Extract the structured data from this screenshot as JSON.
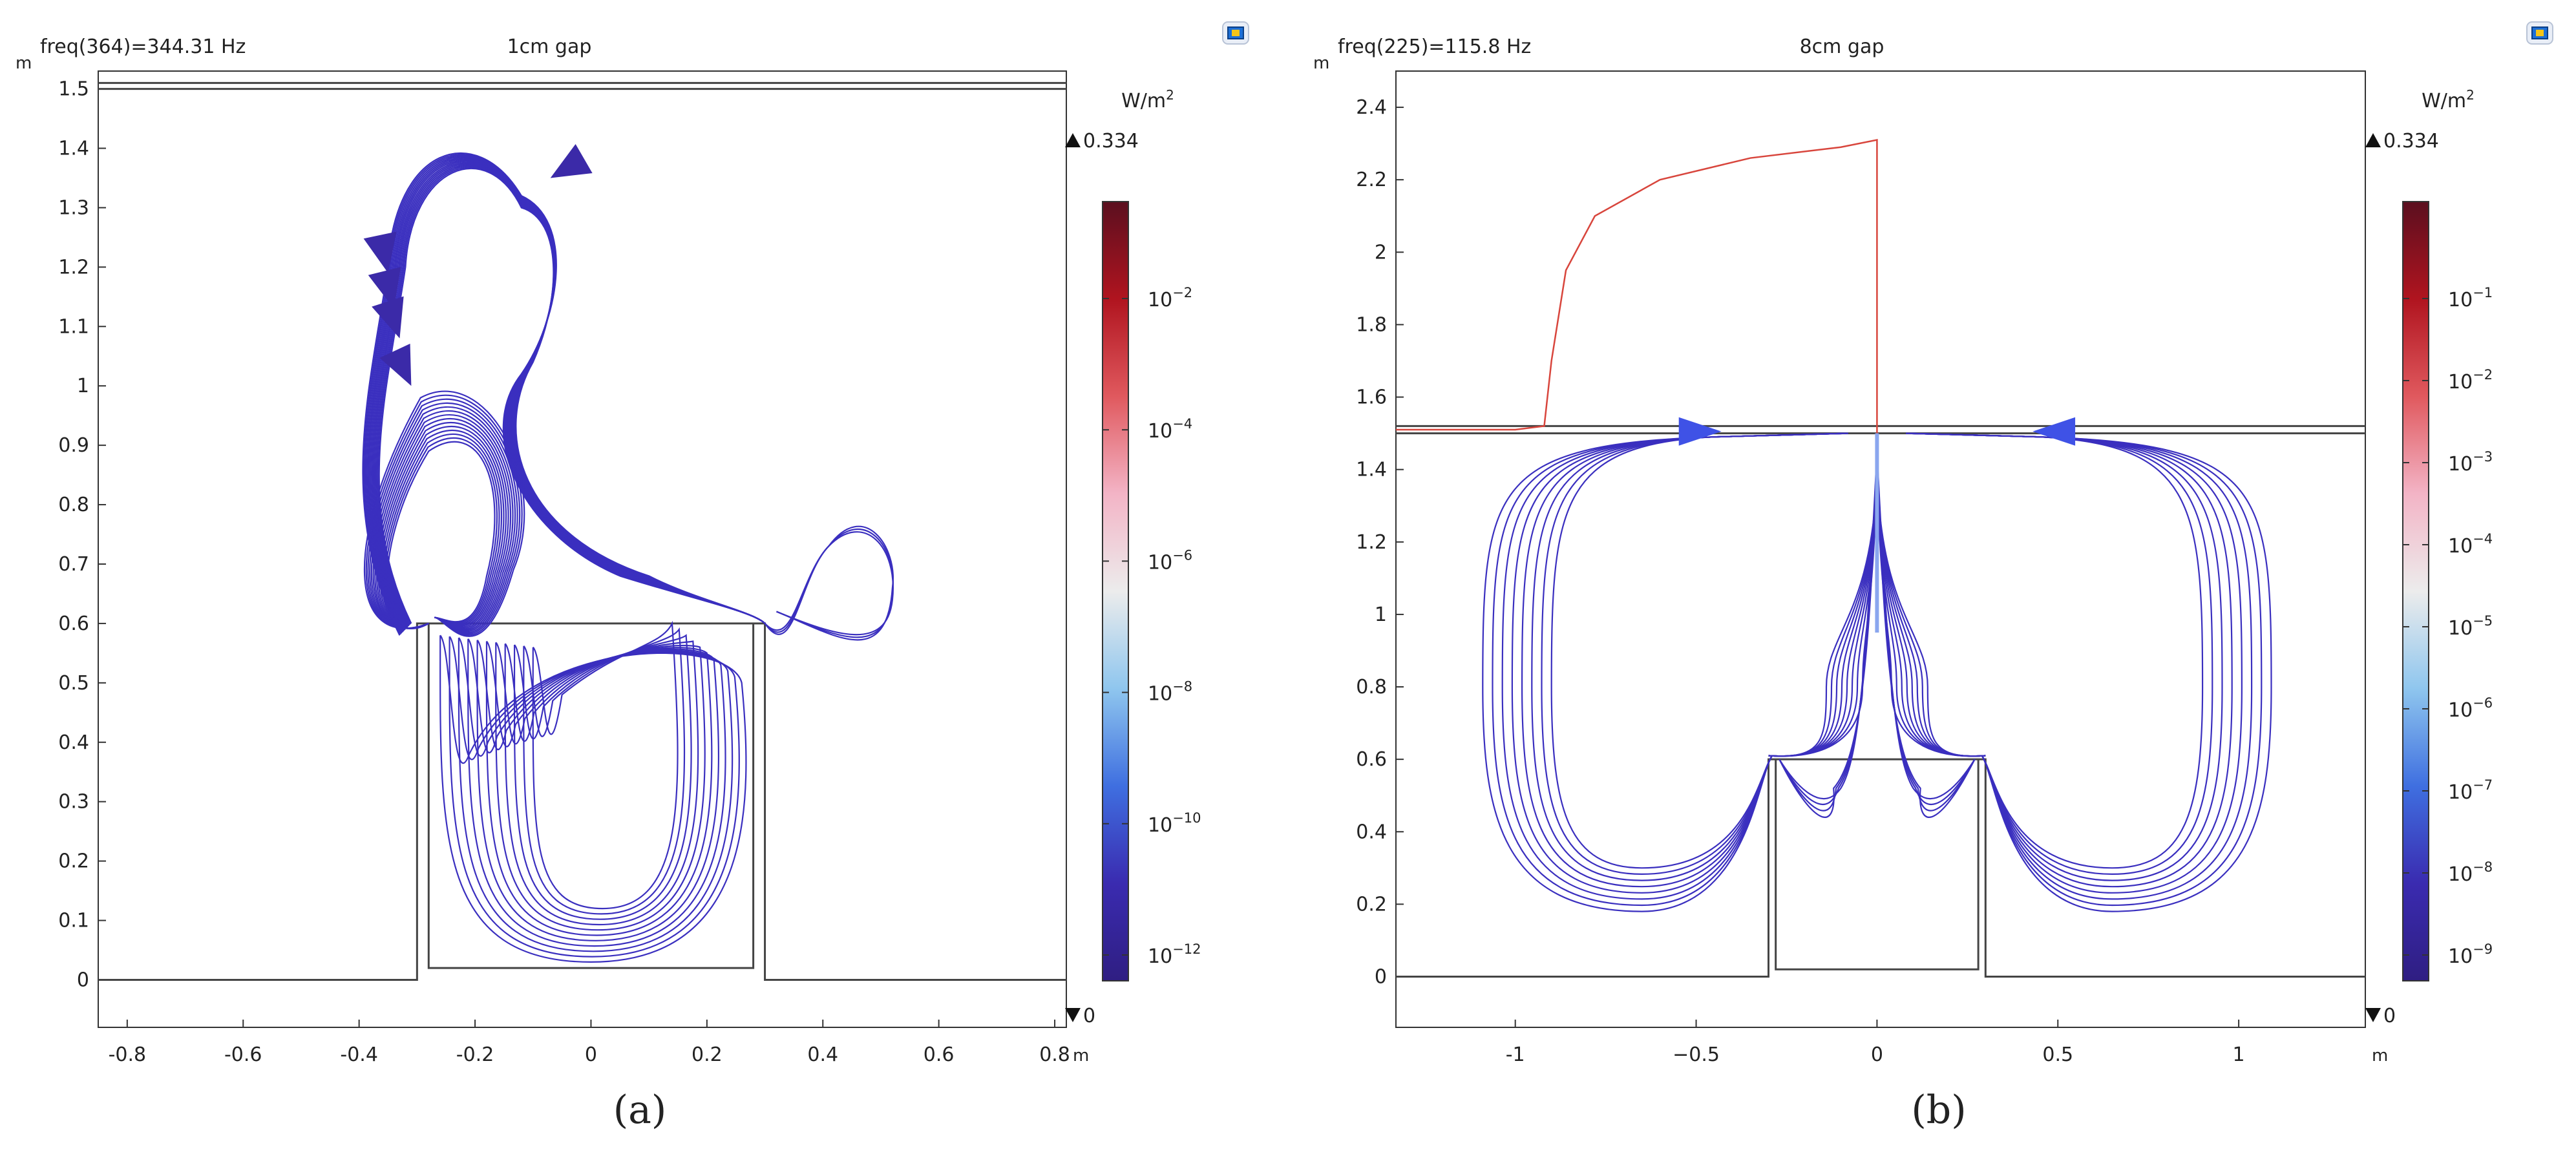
{
  "chart_data": [
    {
      "type": "streamline",
      "panel_label": "(a)",
      "freq_label": "freq(364)=344.31 Hz",
      "title": "1cm gap",
      "xunit": "m",
      "yunit": "m",
      "xlim": [
        -0.85,
        0.82
      ],
      "ylim": [
        -0.08,
        1.53
      ],
      "x_ticks": [
        "-0.8",
        "-0.6",
        "-0.4",
        "-0.2",
        "0",
        "0.2",
        "0.4",
        "0.6",
        "0.8"
      ],
      "x_tick_values": [
        -0.8,
        -0.6,
        -0.4,
        -0.2,
        0,
        0.2,
        0.4,
        0.6,
        0.8
      ],
      "y_ticks": [
        "0",
        "0.1",
        "0.2",
        "0.3",
        "0.4",
        "0.5",
        "0.6",
        "0.7",
        "0.8",
        "0.9",
        "1",
        "1.1",
        "1.2",
        "1.3",
        "1.4",
        "1.5"
      ],
      "y_tick_values": [
        0,
        0.1,
        0.2,
        0.3,
        0.4,
        0.5,
        0.6,
        0.7,
        0.8,
        0.9,
        1.0,
        1.1,
        1.2,
        1.3,
        1.4,
        1.5
      ],
      "colorbar": {
        "unit": "W/m",
        "unit_sup": "2",
        "max_label": "0.334",
        "min_label": "0",
        "tick_exponents": [
          "−2",
          "−4",
          "−6",
          "−8",
          "−10",
          "−12"
        ],
        "tick_base": "10",
        "colors": [
          "#5b0f1f",
          "#b0141f",
          "#e0595e",
          "#f3b4c6",
          "#ececec",
          "#8fc6ee",
          "#3f6fe0",
          "#3a2bb0",
          "#2f1e82"
        ]
      },
      "geometry": {
        "ground_y": 0.0,
        "outer_box_halfwidth": 0.3,
        "inner_box_halfwidth": 0.28,
        "box_top": 0.6,
        "inner_box_bottom": 0.02,
        "plate_y": [
          1.5,
          1.51
        ]
      },
      "streamline_color": "#3a2fbf"
    },
    {
      "type": "streamline",
      "panel_label": "(b)",
      "freq_label": "freq(225)=115.8 Hz",
      "title": "8cm gap",
      "xunit": "m",
      "yunit": "m",
      "xlim": [
        -1.33,
        1.35
      ],
      "ylim": [
        -0.14,
        2.5
      ],
      "x_ticks": [
        "-1",
        "−0.5",
        "0",
        "0.5",
        "1"
      ],
      "x_tick_values": [
        -1,
        -0.5,
        0,
        0.5,
        1
      ],
      "y_ticks": [
        "0",
        "0.2",
        "0.4",
        "0.6",
        "0.8",
        "1",
        "1.2",
        "1.4",
        "1.6",
        "1.8",
        "2",
        "2.2",
        "2.4"
      ],
      "y_tick_values": [
        0,
        0.2,
        0.4,
        0.6,
        0.8,
        1.0,
        1.2,
        1.4,
        1.6,
        1.8,
        2.0,
        2.2,
        2.4
      ],
      "colorbar": {
        "unit": "W/m",
        "unit_sup": "2",
        "max_label": "0.334",
        "min_label": "0",
        "tick_exponents": [
          "−1",
          "−2",
          "−3",
          "−4",
          "−5",
          "−6",
          "−7",
          "−8",
          "−9"
        ],
        "tick_base": "10",
        "colors": [
          "#5b0f1f",
          "#b0141f",
          "#e0595e",
          "#f3b4c6",
          "#ececec",
          "#8fc6ee",
          "#3f6fe0",
          "#3a2bb0",
          "#2f1e82"
        ]
      },
      "geometry": {
        "ground_y": 0.0,
        "outer_box_halfwidth": 0.3,
        "inner_box_halfwidth": 0.28,
        "box_top": 0.6,
        "inner_box_bottom": 0.02,
        "plate_y": [
          1.5,
          1.52
        ]
      },
      "streamline_color": "#3a2fbf",
      "red_line_color": "#d8453c",
      "red_curve": [
        [
          -1.33,
          1.51
        ],
        [
          -1.0,
          1.51
        ],
        [
          -0.92,
          1.52
        ],
        [
          -0.9,
          1.7
        ],
        [
          -0.86,
          1.95
        ],
        [
          -0.78,
          2.1
        ],
        [
          -0.6,
          2.2
        ],
        [
          -0.35,
          2.26
        ],
        [
          -0.1,
          2.29
        ],
        [
          0.0,
          2.31
        ],
        [
          0.0,
          1.5
        ]
      ]
    }
  ]
}
